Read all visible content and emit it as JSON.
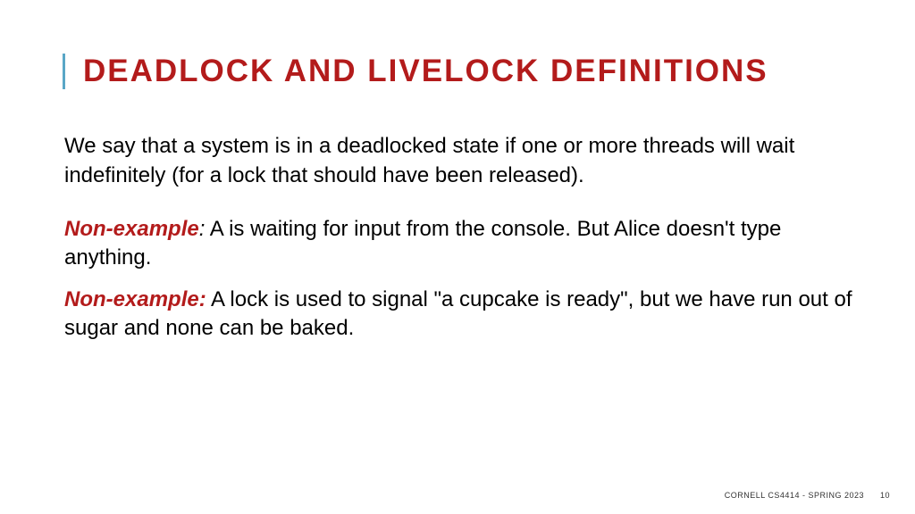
{
  "colors": {
    "accent_red": "#b31b1b",
    "accent_bar": "#5aa7c7",
    "text": "#000000",
    "background": "#ffffff"
  },
  "title": "DEADLOCK AND LIVELOCK DEFINITIONS",
  "paragraphs": {
    "p1": "We say that a system is in a deadlocked state if one or more threads will wait indefinitely (for a lock that should have been released).",
    "p2_label": "Non-example",
    "p2_colon": ":",
    "p2_text": " A is waiting for input from the console.  But Alice doesn't type anything.",
    "p3_label": "Non-example:",
    "p3_text": " A lock is used to signal \"a cupcake is ready\", but we have run out of sugar and none can be baked."
  },
  "footer": {
    "course": "CORNELL CS4414 - SPRING 2023",
    "page": "10"
  }
}
